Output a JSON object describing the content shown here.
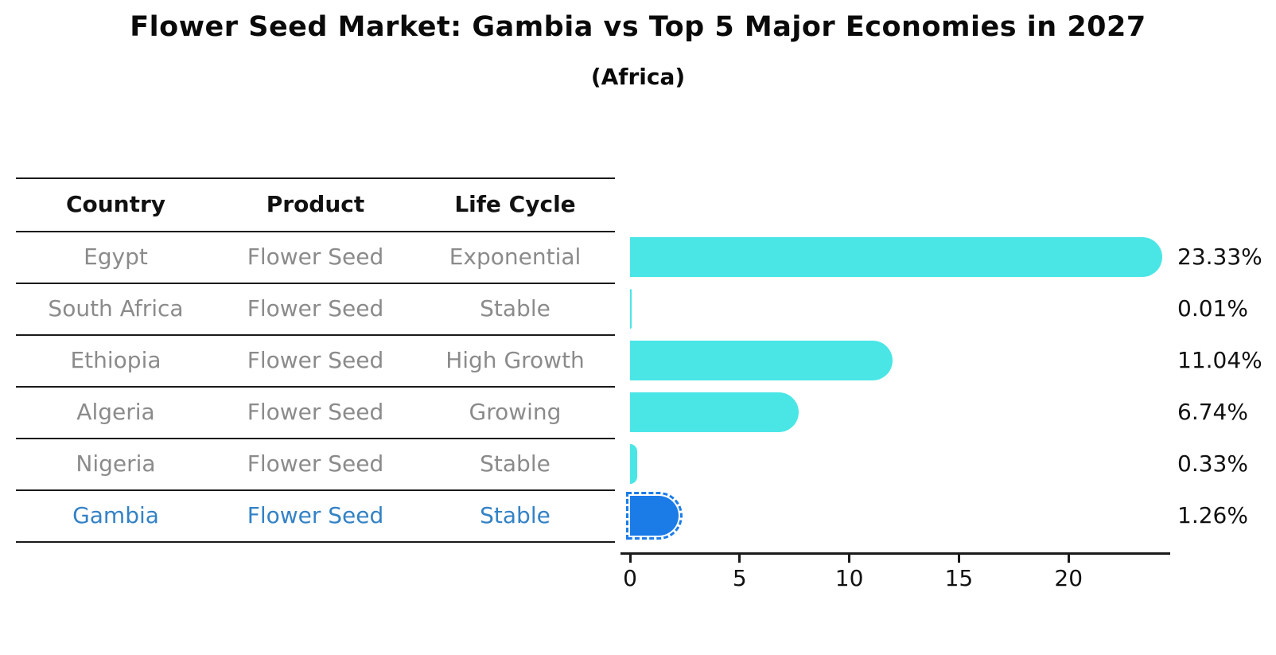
{
  "title": "Flower Seed Market: Gambia vs Top 5 Major Economies in 2027",
  "subtitle": "(Africa)",
  "table": {
    "headers": [
      "Country",
      "Product",
      "Life Cycle"
    ],
    "rows": [
      {
        "country": "Egypt",
        "product": "Flower Seed",
        "life_cycle": "Exponential"
      },
      {
        "country": "South Africa",
        "product": "Flower Seed",
        "life_cycle": "Stable"
      },
      {
        "country": "Ethiopia",
        "product": "Flower Seed",
        "life_cycle": "High Growth"
      },
      {
        "country": "Algeria",
        "product": "Flower Seed",
        "life_cycle": "Growing"
      },
      {
        "country": "Nigeria",
        "product": "Flower Seed",
        "life_cycle": "Stable"
      },
      {
        "country": "Gambia",
        "product": "Flower Seed",
        "life_cycle": "Stable"
      }
    ],
    "highlight_row": "Gambia"
  },
  "chart_data": {
    "type": "bar",
    "orientation": "horizontal",
    "title": "Flower Seed Market: Gambia vs Top 5 Major Economies in 2027",
    "subtitle": "(Africa)",
    "categories": [
      "Egypt",
      "South Africa",
      "Ethiopia",
      "Algeria",
      "Nigeria",
      "Gambia"
    ],
    "values": [
      23.33,
      0.01,
      11.04,
      6.74,
      0.33,
      1.26
    ],
    "value_labels": [
      "23.33%",
      "0.01%",
      "11.04%",
      "6.74%",
      "0.33%",
      "1.26%"
    ],
    "xlabel": "",
    "ylabel": "",
    "xlim": [
      0,
      24.6
    ],
    "xticks": [
      0,
      5,
      10,
      15,
      20
    ],
    "grid": false,
    "legend": "none",
    "highlight_index": 5
  },
  "colors": {
    "bar": "#4ae6e6",
    "highlight_bar": "#1b7ce8",
    "highlight_text": "#3382c6",
    "row_text": "#8b8b8b",
    "header_text": "#111111",
    "axis": "#1a1a1a",
    "value_label": "#111111"
  }
}
